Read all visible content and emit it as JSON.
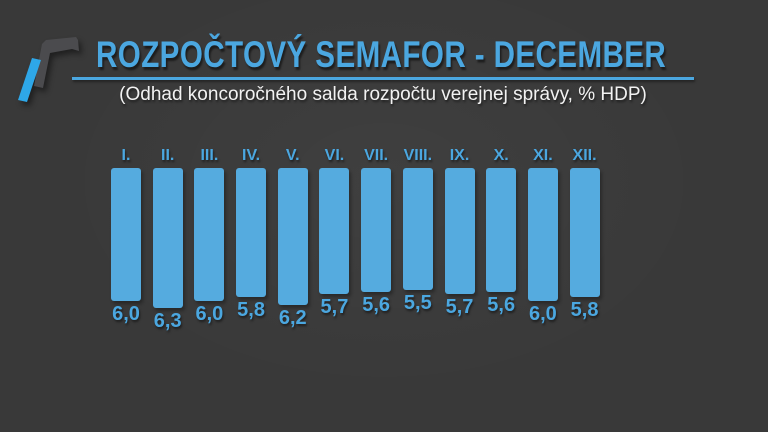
{
  "theme": {
    "background": "#393939",
    "accent": "#4ba7e0",
    "bar": "#55abdf",
    "text": "#f2f2f2",
    "logo_gray": "#4b4b4e",
    "logo_blue": "#2ea7e8"
  },
  "header": {
    "title": "ROZPOČTOVÝ SEMAFOR - DECEMBER",
    "subtitle": "(Odhad koncoročného salda rozpočtu verejnej správy, % HDP)",
    "logo_icon": "angled-slash-logo"
  },
  "chart_data": {
    "type": "bar",
    "title": "ROZPOČTOVÝ SEMAFOR - DECEMBER",
    "subtitle": "(Odhad koncoročného salda rozpočtu verejnej správy, % HDP)",
    "categories": [
      "I.",
      "II.",
      "III.",
      "IV.",
      "V.",
      "VI.",
      "VII.",
      "VIII.",
      "IX.",
      "X.",
      "XI.",
      "XII."
    ],
    "values": [
      6.0,
      6.3,
      6.0,
      5.8,
      6.2,
      5.7,
      5.6,
      5.5,
      5.7,
      5.6,
      6.0,
      5.8
    ],
    "value_labels": [
      "6,0",
      "6,3",
      "6,0",
      "5,8",
      "6,2",
      "5,7",
      "5,6",
      "5,5",
      "5,7",
      "5,6",
      "6,0",
      "5,8"
    ],
    "unit": "% HDP",
    "decimal_separator": ",",
    "ylim": [
      0,
      6.3
    ],
    "bars_extend": "downward-from-common-top",
    "grid": false,
    "legend": false,
    "axes_visible": false,
    "bar_color": "#55abdf",
    "label_color": "#4ba7e0"
  }
}
